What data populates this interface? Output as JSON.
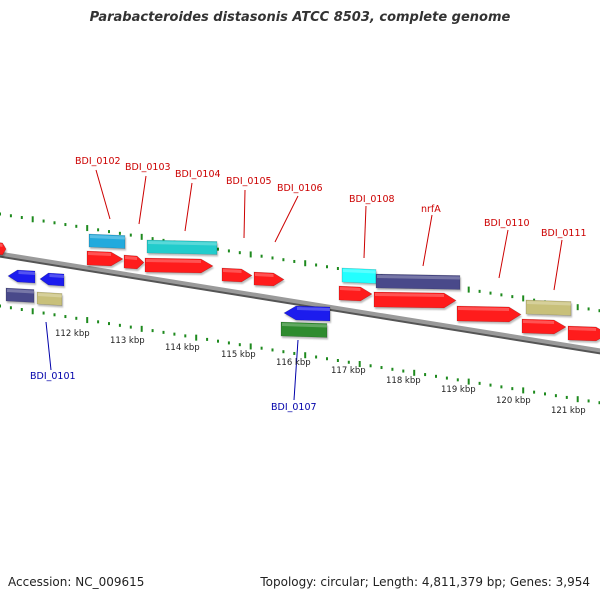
{
  "title": "Parabacteroides distasonis ATCC 8503, complete genome",
  "footer": {
    "accession": "Accession: NC_009615",
    "summary": "Topology: circular; Length: 4,811,379 bp; Genes: 3,954"
  },
  "colors": {
    "backbone": "#8c8c8c",
    "tick": "#1e8a1e",
    "top_label": "#cc0000",
    "bottom_label": "#0000aa",
    "leader": "#cc0000",
    "bottom_leader": "#0000aa",
    "red": "#ff1a1a",
    "blue": "#1a1aee",
    "cyan": "#22cccc",
    "lightblue": "#22aadd",
    "navy": "#4a4a8a",
    "khaki": "#c8c07a",
    "green": "#2e8b2e",
    "brightcyan": "#22ffff"
  },
  "kbp_labels": [
    "112 kbp",
    "113 kbp",
    "114 kbp",
    "115 kbp",
    "116 kbp",
    "117 kbp",
    "118 kbp",
    "119 kbp",
    "120 kbp",
    "121 kbp"
  ],
  "gene_labels_top": [
    "BDI_0102",
    "BDI_0103",
    "BDI_0104",
    "BDI_0105",
    "BDI_0106",
    "BDI_0108",
    "nrfA",
    "BDI_0110",
    "BDI_0111"
  ],
  "gene_labels_bottom": [
    "BDI_0101",
    "BDI_0107"
  ],
  "features": [
    {
      "color": "red",
      "dir": "fwd"
    },
    {
      "color": "lightblue",
      "dir": "none"
    },
    {
      "color": "red",
      "dir": "fwd"
    },
    {
      "color": "red",
      "dir": "fwd"
    },
    {
      "color": "cyan",
      "dir": "none"
    },
    {
      "color": "red",
      "dir": "fwd"
    },
    {
      "color": "red",
      "dir": "fwd"
    },
    {
      "color": "red",
      "dir": "fwd"
    },
    {
      "color": "brightcyan",
      "dir": "none"
    },
    {
      "color": "red",
      "dir": "fwd"
    },
    {
      "color": "navy",
      "dir": "none"
    },
    {
      "color": "red",
      "dir": "fwd"
    },
    {
      "color": "red",
      "dir": "fwd"
    },
    {
      "color": "khaki",
      "dir": "none"
    },
    {
      "color": "red",
      "dir": "fwd"
    },
    {
      "color": "red",
      "dir": "fwd"
    },
    {
      "color": "blue",
      "dir": "rev"
    },
    {
      "color": "blue",
      "dir": "rev"
    },
    {
      "color": "navy",
      "dir": "none"
    },
    {
      "color": "khaki",
      "dir": "none"
    },
    {
      "color": "blue",
      "dir": "rev"
    },
    {
      "color": "green",
      "dir": "none"
    }
  ]
}
